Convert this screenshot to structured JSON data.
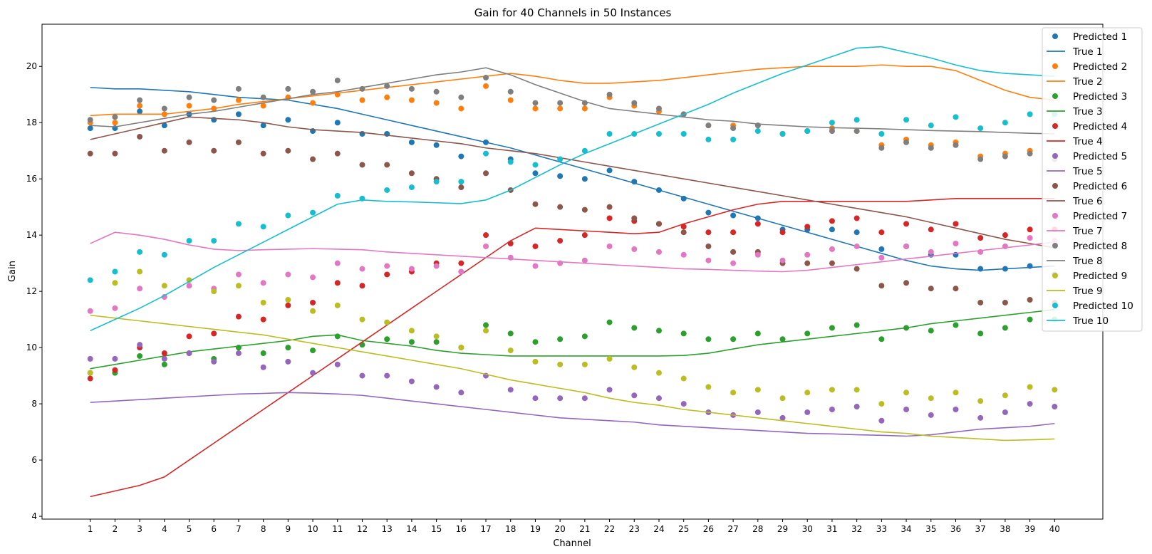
{
  "chart_data": {
    "type": "scatter+line",
    "title": "Gain for 40 Channels in 50 Instances",
    "xlabel": "Channel",
    "ylabel": "Gain",
    "x": [
      1,
      2,
      3,
      4,
      5,
      6,
      7,
      8,
      9,
      10,
      11,
      12,
      13,
      14,
      15,
      16,
      17,
      18,
      19,
      20,
      21,
      22,
      23,
      24,
      25,
      26,
      27,
      28,
      29,
      30,
      31,
      32,
      33,
      34,
      35,
      36,
      37,
      38,
      39,
      40
    ],
    "xlim": [
      -0.95,
      41.95
    ],
    "ylim": [
      3.9,
      21.5
    ],
    "yticks": [
      4,
      6,
      8,
      10,
      12,
      14,
      16,
      18,
      20
    ],
    "grid": false,
    "legend_position": "top-right",
    "series": [
      {
        "id": 1,
        "color": "#1f77b4",
        "predicted_name": "Predicted 1",
        "true_name": "True 1",
        "predicted": [
          17.8,
          17.8,
          18.4,
          17.9,
          18.3,
          18.1,
          18.3,
          17.9,
          18.1,
          17.7,
          18.0,
          17.6,
          17.6,
          17.3,
          17.2,
          16.8,
          17.3,
          16.7,
          16.2,
          16.1,
          16.0,
          16.3,
          15.9,
          15.6,
          15.3,
          14.8,
          14.7,
          14.6,
          14.2,
          14.2,
          14.2,
          14.1,
          13.5,
          13.6,
          13.3,
          13.3,
          12.8,
          12.8,
          12.9,
          12.6
        ],
        "true": [
          19.25,
          19.2,
          19.2,
          19.15,
          19.1,
          19.0,
          18.9,
          18.85,
          18.8,
          18.65,
          18.5,
          18.3,
          18.1,
          17.9,
          17.7,
          17.5,
          17.3,
          17.1,
          16.85,
          16.6,
          16.35,
          16.1,
          15.85,
          15.6,
          15.35,
          15.1,
          14.85,
          14.6,
          14.35,
          14.1,
          13.85,
          13.6,
          13.35,
          13.1,
          12.9,
          12.8,
          12.75,
          12.8,
          12.85,
          12.9
        ]
      },
      {
        "id": 2,
        "color": "#ff7f0e",
        "predicted_name": "Predicted 2",
        "true_name": "True 2",
        "predicted": [
          18.0,
          18.0,
          18.6,
          18.3,
          18.6,
          18.5,
          18.8,
          18.6,
          18.9,
          18.7,
          19.0,
          18.8,
          18.9,
          18.8,
          18.7,
          18.5,
          19.3,
          18.8,
          18.5,
          18.5,
          18.5,
          18.9,
          18.6,
          18.4,
          18.3,
          17.9,
          17.9,
          17.9,
          17.6,
          17.7,
          17.8,
          17.7,
          17.2,
          17.4,
          17.2,
          17.3,
          16.8,
          16.9,
          17.0,
          16.8
        ],
        "true": [
          18.25,
          18.3,
          18.3,
          18.3,
          18.4,
          18.5,
          18.65,
          18.75,
          18.85,
          18.95,
          19.05,
          19.15,
          19.25,
          19.35,
          19.45,
          19.55,
          19.65,
          19.75,
          19.65,
          19.5,
          19.4,
          19.4,
          19.45,
          19.5,
          19.6,
          19.7,
          19.8,
          19.9,
          19.95,
          20.0,
          20.0,
          20.0,
          20.05,
          20.0,
          20.0,
          19.85,
          19.5,
          19.15,
          18.9,
          18.8
        ]
      },
      {
        "id": 3,
        "color": "#2ca02c",
        "predicted_name": "Predicted 3",
        "true_name": "True 3",
        "predicted": [
          9.1,
          9.1,
          9.7,
          9.4,
          9.8,
          9.6,
          10.0,
          9.8,
          10.0,
          9.9,
          10.4,
          10.1,
          10.3,
          10.2,
          10.2,
          10.0,
          10.8,
          10.5,
          10.2,
          10.3,
          10.4,
          10.9,
          10.7,
          10.6,
          10.5,
          10.3,
          10.3,
          10.5,
          10.3,
          10.5,
          10.7,
          10.8,
          10.3,
          10.7,
          10.6,
          10.8,
          10.5,
          10.7,
          11.0,
          11.0
        ],
        "true": [
          9.25,
          9.4,
          9.55,
          9.7,
          9.85,
          9.95,
          10.05,
          10.15,
          10.25,
          10.4,
          10.45,
          10.25,
          10.15,
          10.05,
          9.9,
          9.8,
          9.75,
          9.7,
          9.7,
          9.7,
          9.7,
          9.7,
          9.7,
          9.7,
          9.72,
          9.8,
          9.95,
          10.1,
          10.2,
          10.3,
          10.4,
          10.5,
          10.6,
          10.7,
          10.85,
          10.95,
          11.05,
          11.15,
          11.25,
          11.35
        ]
      },
      {
        "id": 4,
        "color": "#d62728",
        "predicted_name": "Predicted 4",
        "true_name": "True 4",
        "predicted": [
          8.9,
          9.2,
          10.0,
          9.8,
          10.4,
          10.5,
          11.1,
          11.0,
          11.5,
          11.6,
          12.3,
          12.2,
          12.6,
          12.7,
          13.0,
          13.0,
          14.0,
          13.7,
          13.6,
          13.8,
          14.0,
          14.6,
          14.5,
          14.4,
          14.3,
          14.1,
          14.1,
          14.4,
          14.1,
          14.3,
          14.5,
          14.6,
          14.1,
          14.4,
          14.2,
          14.4,
          13.9,
          14.0,
          14.2,
          14.2
        ],
        "true": [
          4.7,
          4.9,
          5.1,
          5.4,
          6.0,
          6.6,
          7.2,
          7.8,
          8.4,
          9.0,
          9.6,
          10.2,
          10.8,
          11.4,
          12.0,
          12.6,
          13.2,
          13.8,
          14.25,
          14.2,
          14.15,
          14.1,
          14.05,
          14.1,
          14.4,
          14.65,
          14.9,
          15.1,
          15.2,
          15.2,
          15.2,
          15.2,
          15.2,
          15.2,
          15.25,
          15.3,
          15.3,
          15.3,
          15.3,
          15.3
        ]
      },
      {
        "id": 5,
        "color": "#9467bd",
        "predicted_name": "Predicted 5",
        "true_name": "True 5",
        "predicted": [
          9.6,
          9.6,
          10.1,
          9.6,
          9.8,
          9.5,
          9.8,
          9.3,
          9.5,
          9.1,
          9.4,
          9.0,
          9.0,
          8.8,
          8.6,
          8.4,
          9.0,
          8.5,
          8.2,
          8.2,
          8.2,
          8.5,
          8.3,
          8.2,
          8.0,
          7.7,
          7.6,
          7.7,
          7.5,
          7.7,
          7.8,
          7.9,
          7.4,
          7.8,
          7.6,
          7.8,
          7.5,
          7.7,
          8.0,
          7.9
        ],
        "true": [
          8.05,
          8.1,
          8.15,
          8.2,
          8.25,
          8.3,
          8.35,
          8.37,
          8.4,
          8.38,
          8.35,
          8.3,
          8.2,
          8.1,
          8.0,
          7.9,
          7.8,
          7.7,
          7.6,
          7.5,
          7.45,
          7.4,
          7.35,
          7.25,
          7.2,
          7.15,
          7.1,
          7.05,
          7.0,
          6.95,
          6.93,
          6.9,
          6.88,
          6.85,
          6.9,
          7.0,
          7.1,
          7.15,
          7.2,
          7.3
        ]
      },
      {
        "id": 6,
        "color": "#8c564b",
        "predicted_name": "Predicted 6",
        "true_name": "True 6",
        "predicted": [
          16.9,
          16.9,
          17.5,
          17.0,
          17.3,
          17.0,
          17.3,
          16.9,
          17.0,
          16.7,
          16.9,
          16.5,
          16.5,
          16.2,
          16.0,
          15.7,
          16.2,
          15.6,
          15.1,
          15.0,
          14.9,
          15.0,
          14.6,
          14.4,
          14.1,
          13.6,
          13.4,
          13.4,
          13.0,
          13.0,
          13.0,
          12.8,
          12.2,
          12.3,
          12.1,
          12.1,
          11.6,
          11.6,
          11.7,
          11.6
        ],
        "true": [
          17.4,
          17.6,
          17.8,
          18.0,
          18.2,
          18.15,
          18.1,
          18.0,
          17.85,
          17.75,
          17.7,
          17.65,
          17.55,
          17.45,
          17.35,
          17.25,
          17.1,
          17.0,
          16.9,
          16.75,
          16.6,
          16.45,
          16.3,
          16.15,
          16.0,
          15.85,
          15.7,
          15.55,
          15.4,
          15.25,
          15.1,
          14.95,
          14.8,
          14.65,
          14.45,
          14.25,
          14.05,
          13.85,
          13.7,
          13.55
        ]
      },
      {
        "id": 7,
        "color": "#e377c2",
        "predicted_name": "Predicted 7",
        "true_name": "True 7",
        "predicted": [
          11.3,
          11.4,
          12.1,
          11.8,
          12.2,
          12.1,
          12.6,
          12.3,
          12.6,
          12.5,
          13.0,
          12.8,
          12.9,
          12.8,
          12.9,
          12.7,
          13.6,
          13.2,
          12.9,
          13.0,
          13.1,
          13.6,
          13.5,
          13.4,
          13.3,
          13.1,
          13.0,
          13.3,
          13.1,
          13.3,
          13.5,
          13.6,
          13.2,
          13.6,
          13.4,
          13.7,
          13.4,
          13.6,
          13.9,
          13.8
        ],
        "true": [
          13.7,
          14.1,
          14.0,
          13.85,
          13.65,
          13.5,
          13.45,
          13.48,
          13.5,
          13.52,
          13.5,
          13.48,
          13.4,
          13.35,
          13.3,
          13.25,
          13.2,
          13.15,
          13.1,
          13.05,
          13.0,
          12.95,
          12.9,
          12.85,
          12.8,
          12.78,
          12.75,
          12.72,
          12.7,
          12.75,
          12.85,
          12.95,
          13.05,
          13.15,
          13.25,
          13.35,
          13.45,
          13.55,
          13.65,
          13.75
        ]
      },
      {
        "id": 8,
        "color": "#7f7f7f",
        "predicted_name": "Predicted 8",
        "true_name": "True 8",
        "predicted": [
          18.1,
          18.2,
          18.8,
          18.5,
          18.9,
          18.8,
          19.2,
          18.9,
          19.2,
          19.1,
          19.5,
          19.2,
          19.3,
          19.2,
          19.1,
          18.9,
          19.6,
          19.1,
          18.7,
          18.7,
          18.7,
          19.0,
          18.7,
          18.5,
          18.3,
          17.9,
          17.8,
          17.9,
          17.6,
          17.7,
          17.7,
          17.7,
          17.1,
          17.3,
          17.1,
          17.2,
          16.7,
          16.8,
          16.9,
          16.7
        ],
        "true": [
          17.9,
          17.85,
          18.0,
          18.15,
          18.3,
          18.4,
          18.55,
          18.7,
          18.85,
          19.0,
          19.1,
          19.25,
          19.4,
          19.55,
          19.7,
          19.8,
          19.95,
          19.7,
          19.35,
          19.05,
          18.75,
          18.5,
          18.4,
          18.3,
          18.2,
          18.1,
          18.05,
          17.95,
          17.9,
          17.85,
          17.82,
          17.8,
          17.78,
          17.75,
          17.72,
          17.7,
          17.68,
          17.65,
          17.62,
          17.6
        ]
      },
      {
        "id": 9,
        "color": "#bcbd22",
        "predicted_name": "Predicted 9",
        "true_name": "True 9",
        "predicted": [
          9.1,
          12.3,
          12.7,
          12.2,
          12.4,
          12.0,
          12.2,
          11.6,
          11.7,
          11.3,
          11.5,
          11.0,
          10.9,
          10.6,
          10.4,
          10.0,
          10.6,
          9.9,
          9.5,
          9.4,
          9.4,
          9.6,
          9.3,
          9.1,
          8.9,
          8.6,
          8.4,
          8.5,
          8.2,
          8.4,
          8.5,
          8.5,
          8.0,
          8.4,
          8.2,
          8.4,
          8.1,
          8.3,
          8.6,
          8.5
        ],
        "true": [
          11.15,
          11.05,
          10.95,
          10.85,
          10.75,
          10.65,
          10.55,
          10.45,
          10.3,
          10.15,
          10.0,
          9.85,
          9.7,
          9.55,
          9.4,
          9.25,
          9.05,
          8.85,
          8.7,
          8.55,
          8.4,
          8.2,
          8.05,
          7.95,
          7.8,
          7.7,
          7.6,
          7.5,
          7.4,
          7.3,
          7.2,
          7.1,
          7.0,
          6.95,
          6.85,
          6.8,
          6.75,
          6.7,
          6.72,
          6.75
        ]
      },
      {
        "id": 10,
        "color": "#17becf",
        "predicted_name": "Predicted 10",
        "true_name": "True 10",
        "predicted": [
          12.4,
          12.7,
          13.4,
          13.3,
          13.8,
          13.8,
          14.4,
          14.3,
          14.7,
          14.8,
          15.4,
          15.3,
          15.6,
          15.7,
          15.9,
          15.9,
          16.9,
          16.6,
          16.5,
          16.7,
          17.0,
          17.6,
          17.6,
          17.6,
          17.6,
          17.4,
          17.4,
          17.7,
          17.6,
          17.7,
          18.0,
          18.1,
          17.6,
          18.1,
          17.9,
          18.2,
          17.8,
          18.0,
          18.3,
          18.3
        ],
        "true": [
          10.6,
          11.0,
          11.4,
          11.85,
          12.35,
          12.85,
          13.3,
          13.75,
          14.2,
          14.65,
          15.1,
          15.25,
          15.2,
          15.18,
          15.15,
          15.12,
          15.25,
          15.6,
          16.05,
          16.5,
          16.9,
          17.25,
          17.6,
          17.95,
          18.3,
          18.65,
          19.05,
          19.4,
          19.75,
          20.05,
          20.35,
          20.65,
          20.7,
          20.5,
          20.3,
          20.05,
          19.85,
          19.75,
          19.7,
          19.65
        ]
      }
    ]
  }
}
